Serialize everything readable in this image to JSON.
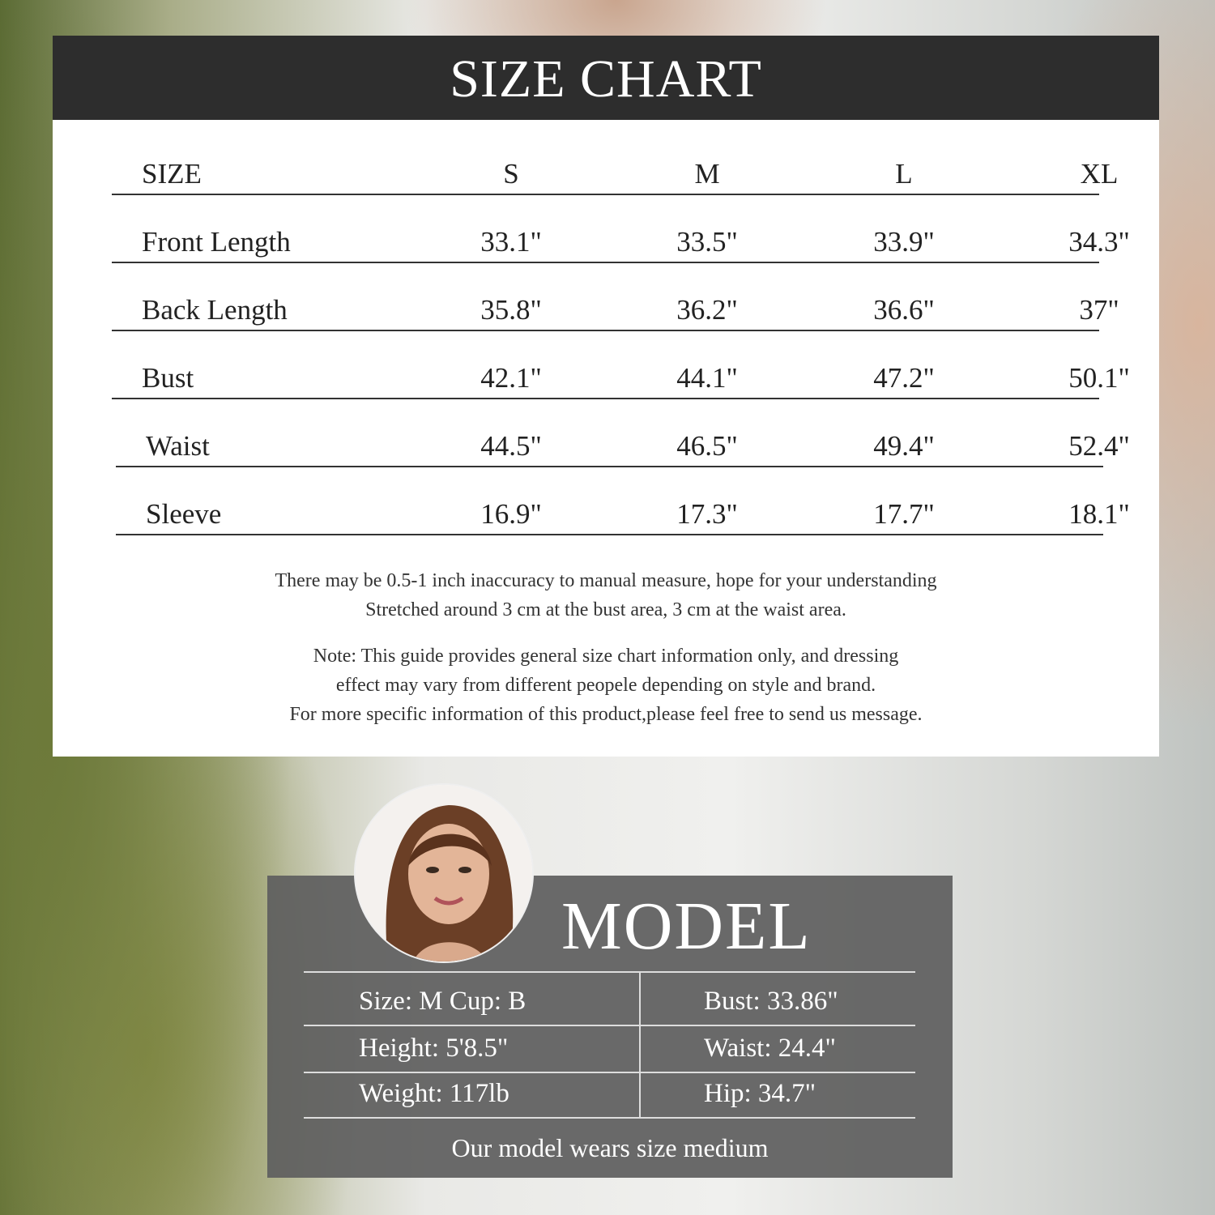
{
  "header": {
    "title": "SIZE CHART"
  },
  "table": {
    "columns": [
      "SIZE",
      "S",
      "M",
      "L",
      "XL"
    ],
    "rows": [
      {
        "label": "Front Length",
        "values": [
          "33.1\"",
          "33.5\"",
          "33.9\"",
          "34.3\""
        ]
      },
      {
        "label": "Back Length",
        "values": [
          "35.8\"",
          "36.2\"",
          "36.6\"",
          "37\""
        ]
      },
      {
        "label": "Bust",
        "values": [
          "42.1\"",
          "44.1\"",
          "47.2\"",
          "50.1\""
        ]
      },
      {
        "label": "Waist",
        "values": [
          "44.5\"",
          "46.5\"",
          "49.4\"",
          "52.4\""
        ]
      },
      {
        "label": "Sleeve",
        "values": [
          "16.9\"",
          "17.3\"",
          "17.7\"",
          "18.1\""
        ]
      }
    ]
  },
  "notes": [
    "There may be 0.5-1 inch inaccuracy to manual measure, hope for your understanding",
    "Stretched around 3 cm at the bust area, 3 cm at the waist area.",
    "Note: This guide provides general size chart information only, and dressing",
    "effect may vary from different peopele depending on style and brand.",
    "For more specific information of this product,please feel free to send us message."
  ],
  "model": {
    "title": "MODEL",
    "rows": [
      {
        "left": "Size: M Cup: B",
        "right": "Bust: 33.86\""
      },
      {
        "left": "Height: 5'8.5\"",
        "right": "Waist: 24.4\""
      },
      {
        "left": "Weight: 117lb",
        "right": "Hip: 34.7\""
      }
    ],
    "footer": "Our model wears size medium"
  }
}
